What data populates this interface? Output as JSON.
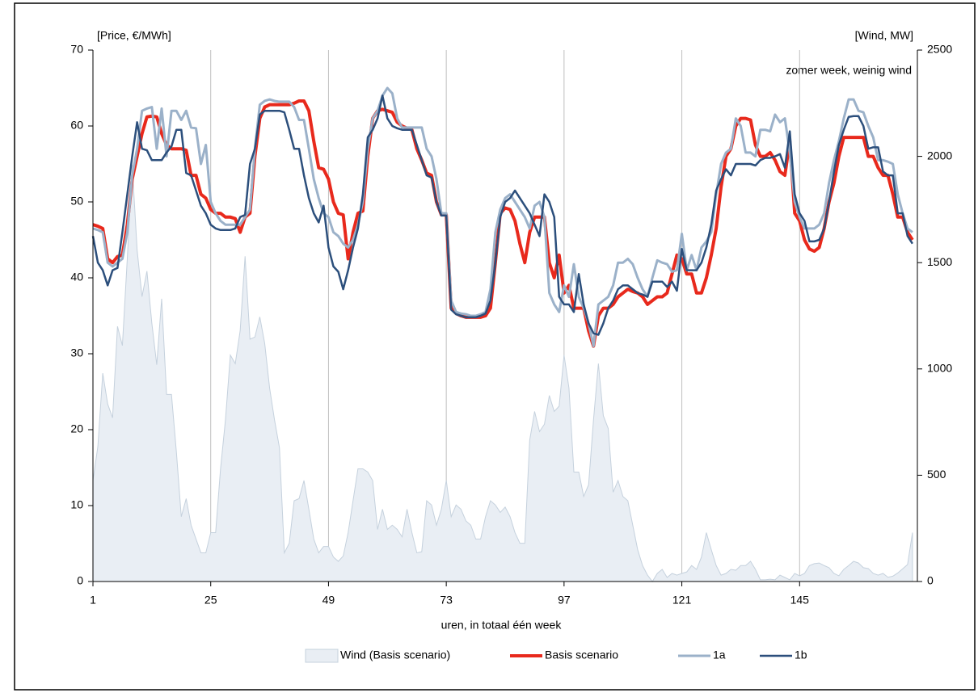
{
  "chart_data": {
    "type": "line",
    "y_label": "[Price, €/MWh]",
    "y2_label": "[Wind, MW]",
    "x_label": "uren, in totaal één week",
    "annotation": "zomer week, weinig wind",
    "xlim": [
      1,
      169
    ],
    "xticks": [
      1,
      25,
      49,
      73,
      97,
      121,
      145
    ],
    "ylim": [
      0,
      70
    ],
    "yticks": [
      0,
      10,
      20,
      30,
      40,
      50,
      60,
      70
    ],
    "y2lim": [
      0,
      2500
    ],
    "y2ticks": [
      0,
      500,
      1000,
      1500,
      2000,
      2500
    ],
    "grid": "x",
    "x": [
      1,
      2,
      3,
      4,
      5,
      6,
      7,
      8,
      9,
      10,
      11,
      12,
      13,
      14,
      15,
      16,
      17,
      18,
      19,
      20,
      21,
      22,
      23,
      24,
      25,
      26,
      27,
      28,
      29,
      30,
      31,
      32,
      33,
      34,
      35,
      36,
      37,
      38,
      39,
      40,
      41,
      42,
      43,
      44,
      45,
      46,
      47,
      48,
      49,
      50,
      51,
      52,
      53,
      54,
      55,
      56,
      57,
      58,
      59,
      60,
      61,
      62,
      63,
      64,
      65,
      66,
      67,
      68,
      69,
      70,
      71,
      72,
      73,
      74,
      75,
      76,
      77,
      78,
      79,
      80,
      81,
      82,
      83,
      84,
      85,
      86,
      87,
      88,
      89,
      90,
      91,
      92,
      93,
      94,
      95,
      96,
      97,
      98,
      99,
      100,
      101,
      102,
      103,
      104,
      105,
      106,
      107,
      108,
      109,
      110,
      111,
      112,
      113,
      114,
      115,
      116,
      117,
      118,
      119,
      120,
      121,
      122,
      123,
      124,
      125,
      126,
      127,
      128,
      129,
      130,
      131,
      132,
      133,
      134,
      135,
      136,
      137,
      138,
      139,
      140,
      141,
      142,
      143,
      144,
      145,
      146,
      147,
      148,
      149,
      150,
      151,
      152,
      153,
      154,
      155,
      156,
      157,
      158,
      159,
      160,
      161,
      162,
      163,
      164,
      165,
      166,
      167,
      168
    ],
    "series": [
      {
        "name": "Wind (Basis scenario)",
        "type": "area",
        "axis": "y2",
        "color": "#e9eef4",
        "values": [
          475,
          635,
          980,
          835,
          770,
          1200,
          1110,
          1520,
          1960,
          1560,
          1340,
          1460,
          1215,
          1020,
          1330,
          880,
          880,
          610,
          305,
          390,
          265,
          200,
          135,
          135,
          230,
          230,
          530,
          760,
          1065,
          1025,
          1180,
          1530,
          1140,
          1150,
          1245,
          1120,
          910,
          760,
          630,
          135,
          180,
          380,
          390,
          475,
          340,
          200,
          135,
          165,
          165,
          115,
          95,
          120,
          230,
          380,
          530,
          530,
          515,
          475,
          245,
          340,
          245,
          265,
          245,
          210,
          340,
          230,
          135,
          140,
          380,
          360,
          265,
          340,
          475,
          305,
          360,
          340,
          285,
          265,
          200,
          200,
          305,
          380,
          360,
          325,
          350,
          305,
          230,
          180,
          180,
          665,
          800,
          705,
          740,
          875,
          800,
          825,
          1065,
          910,
          515,
          515,
          400,
          455,
          760,
          1025,
          780,
          720,
          420,
          475,
          400,
          380,
          265,
          150,
          75,
          30,
          0,
          38,
          57,
          19,
          38,
          30,
          38,
          45,
          75,
          57,
          115,
          230,
          150,
          75,
          30,
          38,
          57,
          53,
          75,
          75,
          95,
          57,
          8,
          8,
          11,
          8,
          30,
          19,
          8,
          38,
          27,
          38,
          75,
          84,
          87,
          75,
          65,
          38,
          27,
          57,
          75,
          95,
          87,
          65,
          61,
          38,
          30,
          38,
          20,
          25,
          40,
          60,
          80,
          230
        ]
      },
      {
        "name": "Basis scenario",
        "color": "#e8291c",
        "width": 4,
        "values": [
          47,
          46.8,
          46.5,
          42.5,
          42,
          42.8,
          43,
          47,
          53,
          56,
          59,
          61.2,
          61.3,
          61.2,
          59,
          57.5,
          57,
          57,
          57,
          56.8,
          53.5,
          53.5,
          51,
          50.5,
          49,
          48.5,
          48.5,
          48,
          48,
          47.8,
          46,
          48,
          48.5,
          56,
          61,
          62.5,
          62.8,
          62.8,
          62.8,
          62.8,
          62.8,
          63,
          63.3,
          63.3,
          62,
          58,
          54.5,
          54.3,
          53,
          50,
          48.5,
          48.3,
          42.5,
          46,
          48.5,
          48.8,
          56,
          61,
          62,
          62.2,
          62,
          61.8,
          60.5,
          60,
          59.7,
          59.5,
          57,
          55.5,
          53.8,
          53.5,
          50,
          48.3,
          48.3,
          36,
          35.3,
          35,
          34.8,
          34.8,
          34.8,
          34.8,
          35,
          36,
          42,
          48.5,
          49.2,
          49,
          47.5,
          44.5,
          42,
          46,
          48,
          48,
          48,
          42,
          40,
          43,
          38,
          39,
          36,
          36,
          36,
          33,
          31,
          35,
          36,
          36,
          36.5,
          37.5,
          38,
          38.5,
          38.2,
          38,
          37.5,
          36.5,
          37,
          37.5,
          37.5,
          38,
          40.5,
          43,
          42.5,
          40.5,
          40.5,
          38,
          38,
          40,
          43,
          46.5,
          52,
          56,
          57,
          60,
          61,
          61,
          60.8,
          57.5,
          56,
          56,
          56.5,
          55.5,
          54,
          53.5,
          58,
          48.5,
          47.5,
          45,
          43.8,
          43.5,
          44,
          46.5,
          50,
          52.5,
          56,
          58.5,
          58.5,
          58.5,
          58.5,
          58.5,
          56,
          56,
          54.5,
          53.5,
          53.5,
          51,
          48,
          48,
          46,
          45
        ]
      },
      {
        "name": "1a",
        "color": "#9bb1c9",
        "width": 3,
        "values": [
          46.5,
          46.3,
          46,
          42,
          41.5,
          42,
          42.5,
          46,
          53.5,
          57,
          62,
          62.3,
          62.5,
          57,
          62.3,
          56,
          62,
          62,
          60.8,
          62,
          59.8,
          59.7,
          55,
          57.5,
          50,
          48.5,
          47.5,
          47,
          47,
          47,
          47,
          48,
          49,
          57,
          62.8,
          63.3,
          63.5,
          63.3,
          63.2,
          63.2,
          63.2,
          62.5,
          60.8,
          60.8,
          57,
          53,
          50.5,
          48.5,
          48,
          46,
          45.5,
          44.5,
          44,
          45,
          47,
          50,
          57,
          61,
          62,
          64,
          65,
          64.3,
          61,
          59.8,
          59.8,
          59.8,
          59.8,
          59.8,
          57,
          56,
          53,
          48.5,
          48.5,
          37,
          35.5,
          35.3,
          35.2,
          35,
          35,
          35.2,
          35.5,
          38.5,
          46,
          49,
          50.5,
          51,
          50,
          49,
          48,
          46.5,
          49.5,
          50,
          48,
          38,
          36.5,
          35.5,
          39,
          37.5,
          41.8,
          37.5,
          36,
          34,
          31,
          36.5,
          37,
          37.5,
          39,
          42,
          42,
          42.5,
          41.8,
          40,
          38.5,
          37.5,
          40,
          42.3,
          42,
          41.8,
          40.8,
          41,
          45.8,
          41,
          43,
          41,
          44,
          44.8,
          46,
          51,
          55,
          56.5,
          57,
          61,
          60,
          56.5,
          56.5,
          56,
          59.5,
          59.5,
          59.3,
          61.5,
          60.5,
          61,
          56.5,
          50,
          48,
          46.5,
          46.5,
          46.5,
          47,
          48.5,
          52.5,
          55.5,
          58,
          61,
          63.5,
          63.5,
          62,
          61.8,
          60,
          58.5,
          55.5,
          55.5,
          55.3,
          55,
          51,
          48.5,
          46.5,
          46
        ]
      },
      {
        "name": "1b",
        "color": "#2c4f7c",
        "width": 2.5,
        "values": [
          45.5,
          42,
          41,
          39,
          41,
          41.3,
          46,
          51,
          56,
          60.5,
          57,
          56.8,
          55.5,
          55.5,
          55.5,
          56.5,
          57.3,
          59.5,
          59.5,
          53.8,
          53.5,
          51.5,
          49.5,
          48.5,
          47,
          46.5,
          46.3,
          46.3,
          46.3,
          46.5,
          48,
          48.3,
          55,
          57,
          61.5,
          62,
          62,
          62,
          62,
          61.8,
          59.5,
          57,
          57,
          53.5,
          50.5,
          48.5,
          47.3,
          49.5,
          44,
          41.5,
          40.8,
          38.5,
          41,
          44,
          46.5,
          51,
          58.5,
          59.5,
          61,
          64,
          61,
          60,
          59.7,
          59.5,
          59.5,
          59.5,
          57.5,
          55.5,
          53.5,
          53.2,
          50,
          48.2,
          48.2,
          35.8,
          35.2,
          35,
          34.8,
          34.8,
          34.8,
          35,
          35.3,
          37,
          42,
          48,
          50,
          50.5,
          51.5,
          50.5,
          49.5,
          48.5,
          47,
          45.5,
          51,
          50,
          48,
          37.5,
          36.5,
          36.5,
          35.5,
          40.5,
          36.5,
          34,
          32.7,
          32.5,
          34,
          36,
          37,
          38.5,
          39,
          39,
          38.5,
          38,
          37.8,
          37.5,
          39.5,
          39.5,
          39.5,
          38.8,
          39.5,
          38.3,
          43.8,
          41,
          41,
          41,
          42,
          44,
          47,
          51.5,
          53,
          54.3,
          53.5,
          55,
          55,
          55,
          55,
          54.8,
          55.5,
          55.8,
          55.8,
          56,
          56.3,
          54.5,
          59.3,
          51,
          48.5,
          47.5,
          44.8,
          44.8,
          45,
          46.5,
          50,
          54,
          57.5,
          59.5,
          61.2,
          61.3,
          61.3,
          60,
          57,
          57.2,
          57.2,
          54,
          53.5,
          53.5,
          48.5,
          48.5,
          45.5,
          44.5
        ]
      }
    ]
  }
}
